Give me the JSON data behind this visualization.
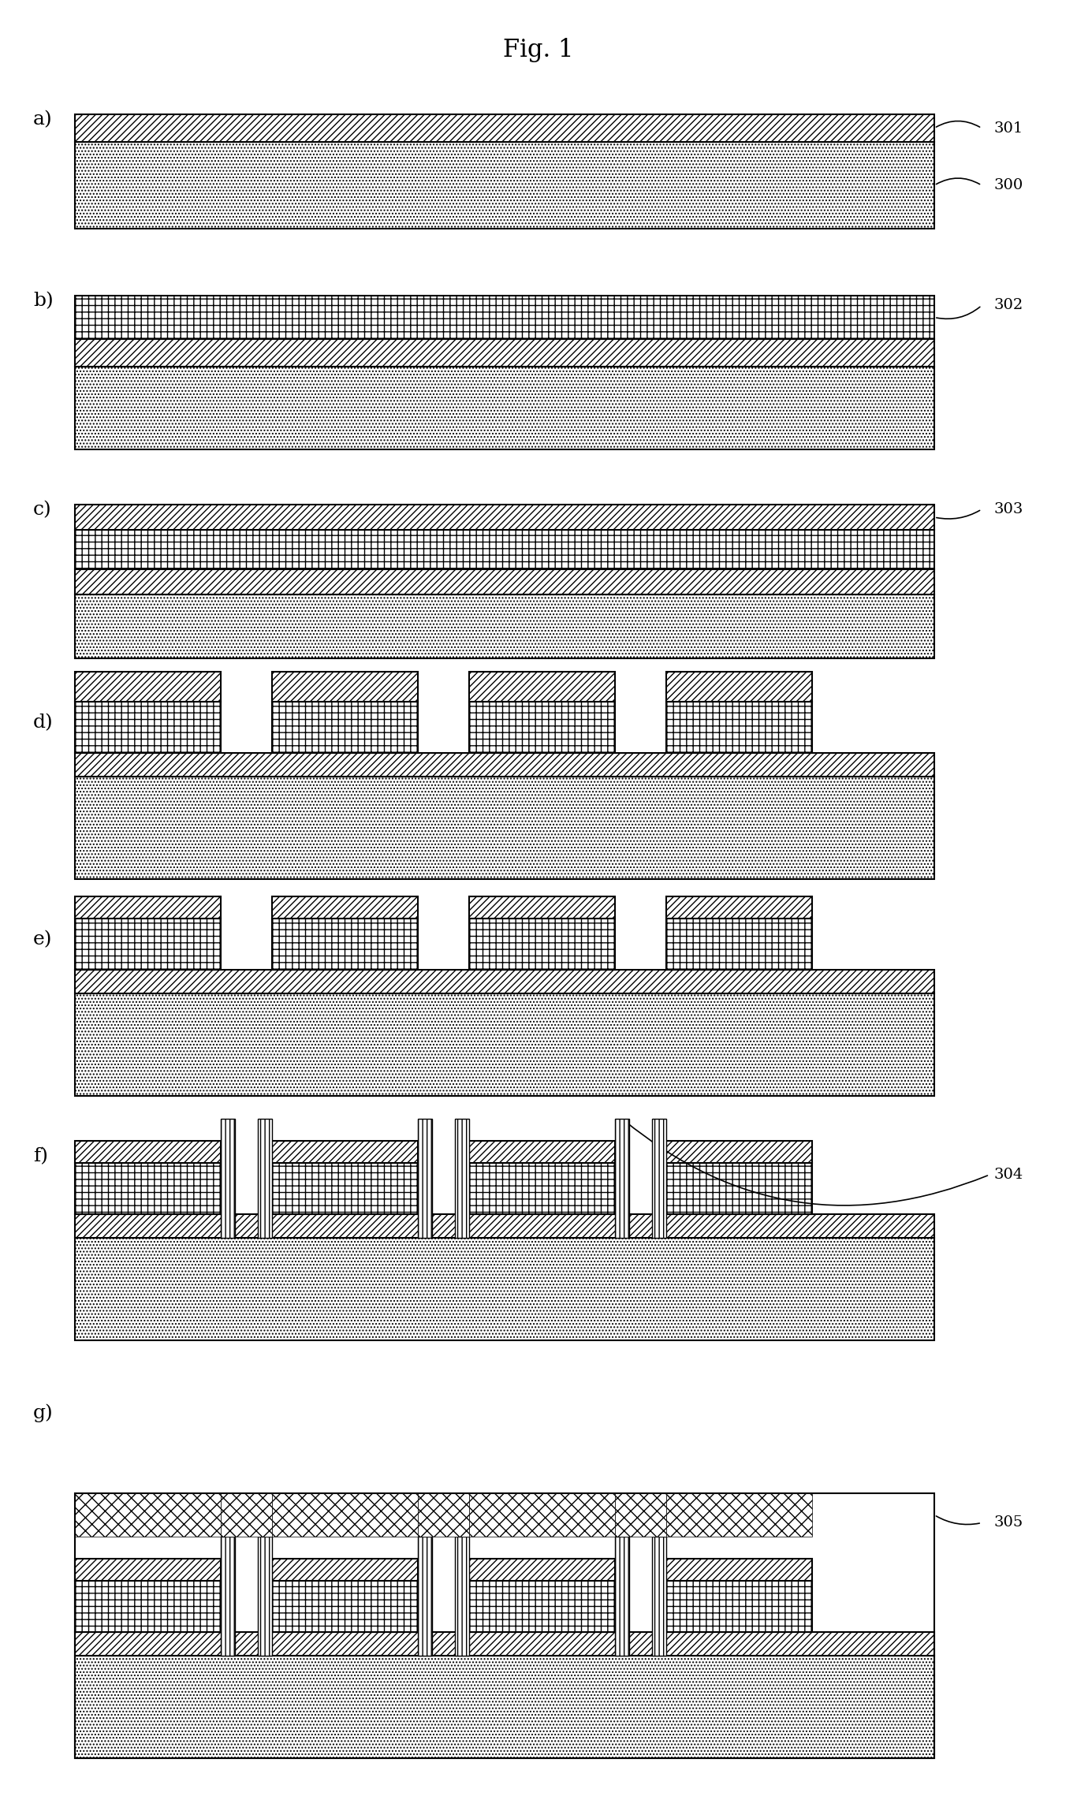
{
  "title": "Fig. 1",
  "bg_color": "#ffffff",
  "panel_labels": [
    "a)",
    "b)",
    "c)",
    "d)",
    "e)",
    "f)",
    "g)"
  ],
  "figure_size": [
    13.66,
    22.97
  ],
  "dpi": 100
}
